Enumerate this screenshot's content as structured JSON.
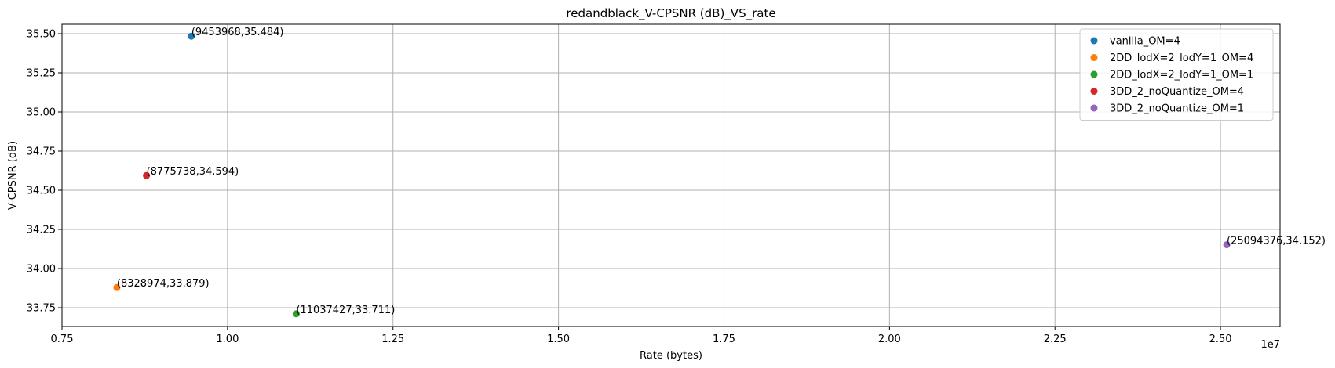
{
  "chart_data": {
    "type": "scatter",
    "title": "redandblack_V-CPSNR (dB)_VS_rate",
    "xlabel": "Rate (bytes)",
    "ylabel": "V-CPSNR (dB)",
    "x_offset_label": "1e7",
    "xlim": [
      7500000,
      25900000
    ],
    "ylim": [
      33.63,
      35.56
    ],
    "x_ticks": [
      {
        "value": 7500000,
        "label": "0.75"
      },
      {
        "value": 10000000,
        "label": "1.00"
      },
      {
        "value": 12500000,
        "label": "1.25"
      },
      {
        "value": 15000000,
        "label": "1.50"
      },
      {
        "value": 17500000,
        "label": "1.75"
      },
      {
        "value": 20000000,
        "label": "2.00"
      },
      {
        "value": 22500000,
        "label": "2.25"
      },
      {
        "value": 25000000,
        "label": "2.50"
      }
    ],
    "y_ticks": [
      {
        "value": 33.75,
        "label": "33.75"
      },
      {
        "value": 34.0,
        "label": "34.00"
      },
      {
        "value": 34.25,
        "label": "34.25"
      },
      {
        "value": 34.5,
        "label": "34.50"
      },
      {
        "value": 34.75,
        "label": "34.75"
      },
      {
        "value": 35.0,
        "label": "35.00"
      },
      {
        "value": 35.25,
        "label": "35.25"
      },
      {
        "value": 35.5,
        "label": "35.50"
      }
    ],
    "grid": true,
    "legend_position": "top-right",
    "series": [
      {
        "name": "vanilla_OM=4",
        "color": "#1f77b4",
        "points": [
          {
            "x": 9453968,
            "y": 35.484,
            "label": "(9453968,35.484)"
          }
        ]
      },
      {
        "name": "2DD_lodX=2_lodY=1_OM=4",
        "color": "#ff7f0e",
        "points": [
          {
            "x": 8328974,
            "y": 33.879,
            "label": "(8328974,33.879)"
          }
        ]
      },
      {
        "name": "2DD_lodX=2_lodY=1_OM=1",
        "color": "#2ca02c",
        "points": [
          {
            "x": 11037427,
            "y": 33.711,
            "label": "(11037427,33.711)"
          }
        ]
      },
      {
        "name": "3DD_2_noQuantize_OM=4",
        "color": "#d62728",
        "points": [
          {
            "x": 8775738,
            "y": 34.594,
            "label": "(8775738,34.594)"
          }
        ]
      },
      {
        "name": "3DD_2_noQuantize_OM=1",
        "color": "#9467bd",
        "points": [
          {
            "x": 25094376,
            "y": 34.152,
            "label": "(25094376,34.152)"
          }
        ]
      }
    ]
  }
}
